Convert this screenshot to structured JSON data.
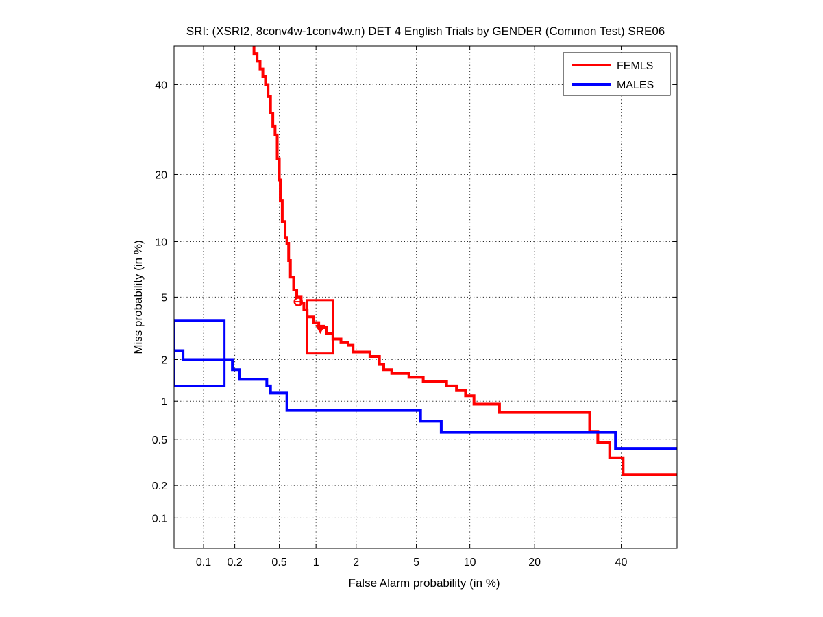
{
  "chart_data": {
    "type": "line",
    "title": "SRI: (XSRI2, 8conv4w-1conv4w.n) DET 4 English Trials by GENDER (Common Test) SRE06",
    "xlabel": "False Alarm probability (in %)",
    "ylabel": "Miss probability (in %)",
    "x_scale": "normal-deviate (probit)",
    "y_scale": "normal-deviate (probit)",
    "xlim": [
      0.05,
      55
    ],
    "ylim": [
      0.05,
      50
    ],
    "x_ticks": [
      0.1,
      0.2,
      0.5,
      1,
      2,
      5,
      10,
      20,
      40
    ],
    "x_tick_labels": [
      "0.1",
      "0.2",
      "0.5",
      "1",
      "2",
      "5",
      "10",
      "20",
      "40"
    ],
    "y_ticks": [
      0.1,
      0.2,
      0.5,
      1,
      2,
      5,
      10,
      20,
      40
    ],
    "y_tick_labels": [
      "0.1",
      "0.2",
      "0.5",
      "1",
      "2",
      "5",
      "10",
      "20",
      "40"
    ],
    "grid": true,
    "legend_position": "top-right",
    "series": [
      {
        "name": "FEMLS",
        "color": "#ff0000",
        "points": [
          [
            0.3,
            50
          ],
          [
            0.3,
            48
          ],
          [
            0.32,
            48
          ],
          [
            0.32,
            46
          ],
          [
            0.34,
            46
          ],
          [
            0.34,
            44
          ],
          [
            0.36,
            44
          ],
          [
            0.36,
            42
          ],
          [
            0.38,
            42
          ],
          [
            0.38,
            40
          ],
          [
            0.4,
            40
          ],
          [
            0.4,
            37
          ],
          [
            0.42,
            37
          ],
          [
            0.42,
            33
          ],
          [
            0.44,
            33
          ],
          [
            0.44,
            30
          ],
          [
            0.46,
            30
          ],
          [
            0.46,
            28
          ],
          [
            0.48,
            28
          ],
          [
            0.48,
            23
          ],
          [
            0.5,
            23
          ],
          [
            0.5,
            19
          ],
          [
            0.51,
            19
          ],
          [
            0.51,
            15.5
          ],
          [
            0.53,
            15.5
          ],
          [
            0.53,
            12.5
          ],
          [
            0.56,
            12.5
          ],
          [
            0.56,
            10.5
          ],
          [
            0.58,
            10.5
          ],
          [
            0.58,
            9.8
          ],
          [
            0.6,
            9.8
          ],
          [
            0.6,
            8
          ],
          [
            0.62,
            8
          ],
          [
            0.62,
            6.5
          ],
          [
            0.66,
            6.5
          ],
          [
            0.66,
            5.5
          ],
          [
            0.7,
            5.5
          ],
          [
            0.7,
            5.0
          ],
          [
            0.76,
            5.0
          ],
          [
            0.76,
            4.6
          ],
          [
            0.8,
            4.6
          ],
          [
            0.8,
            4.2
          ],
          [
            0.85,
            4.2
          ],
          [
            0.85,
            3.8
          ],
          [
            0.95,
            3.8
          ],
          [
            0.95,
            3.5
          ],
          [
            1.05,
            3.5
          ],
          [
            1.05,
            3.25
          ],
          [
            1.2,
            3.25
          ],
          [
            1.2,
            3.0
          ],
          [
            1.35,
            3.0
          ],
          [
            1.35,
            2.75
          ],
          [
            1.55,
            2.75
          ],
          [
            1.55,
            2.6
          ],
          [
            1.75,
            2.6
          ],
          [
            1.75,
            2.5
          ],
          [
            1.9,
            2.5
          ],
          [
            1.9,
            2.25
          ],
          [
            2.5,
            2.25
          ],
          [
            2.5,
            2.1
          ],
          [
            2.9,
            2.1
          ],
          [
            2.9,
            1.85
          ],
          [
            3.1,
            1.85
          ],
          [
            3.1,
            1.7
          ],
          [
            3.5,
            1.7
          ],
          [
            3.5,
            1.6
          ],
          [
            4.5,
            1.6
          ],
          [
            4.5,
            1.5
          ],
          [
            5.5,
            1.5
          ],
          [
            5.5,
            1.4
          ],
          [
            7.5,
            1.4
          ],
          [
            7.5,
            1.3
          ],
          [
            8.5,
            1.3
          ],
          [
            8.5,
            1.2
          ],
          [
            9.5,
            1.2
          ],
          [
            9.5,
            1.1
          ],
          [
            10.5,
            1.1
          ],
          [
            10.5,
            0.95
          ],
          [
            14,
            0.95
          ],
          [
            14,
            0.82
          ],
          [
            32,
            0.82
          ],
          [
            32,
            0.58
          ],
          [
            34,
            0.58
          ],
          [
            34,
            0.47
          ],
          [
            37,
            0.47
          ],
          [
            37,
            0.35
          ],
          [
            40.5,
            0.35
          ],
          [
            40.5,
            0.25
          ],
          [
            55,
            0.25
          ]
        ],
        "min_dcf_point": [
          0.72,
          4.7
        ],
        "act_dcf_point": [
          1.08,
          3.2
        ],
        "confidence_box": {
          "x": [
            0.85,
            1.35
          ],
          "y": [
            2.2,
            4.8
          ]
        }
      },
      {
        "name": "MALES",
        "color": "#0000ff",
        "points": [
          [
            0.05,
            2.3
          ],
          [
            0.062,
            2.3
          ],
          [
            0.062,
            2.0
          ],
          [
            0.19,
            2.0
          ],
          [
            0.19,
            1.7
          ],
          [
            0.22,
            1.7
          ],
          [
            0.22,
            1.45
          ],
          [
            0.39,
            1.45
          ],
          [
            0.39,
            1.3
          ],
          [
            0.42,
            1.3
          ],
          [
            0.42,
            1.15
          ],
          [
            0.58,
            1.15
          ],
          [
            0.58,
            0.85
          ],
          [
            5.3,
            0.85
          ],
          [
            5.3,
            0.7
          ],
          [
            7,
            0.7
          ],
          [
            7,
            0.57
          ],
          [
            38.5,
            0.57
          ],
          [
            38.5,
            0.42
          ],
          [
            55,
            0.42
          ]
        ],
        "confidence_box": {
          "x": [
            0.05,
            0.16
          ],
          "y": [
            1.3,
            3.6
          ]
        }
      }
    ]
  }
}
